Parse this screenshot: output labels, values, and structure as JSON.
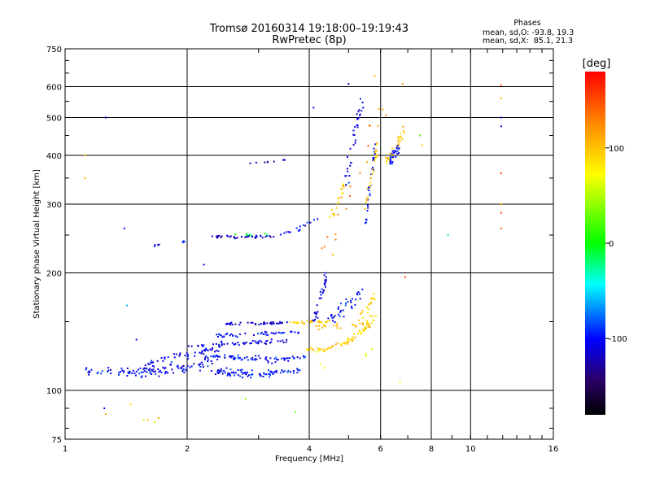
{
  "chart_data": {
    "type": "scatter",
    "title": "Tromsø 20160314 19:18:00–19:19:43",
    "subtitle": "RwPretec (8p)",
    "xlabel": "Frequency [MHz]",
    "ylabel": "Stationary phase Virtual Height [km]",
    "xscale": "log",
    "yscale": "log",
    "xlim": [
      1,
      16
    ],
    "ylim": [
      75,
      750
    ],
    "xticks": [
      1,
      2,
      4,
      6,
      8,
      10,
      16
    ],
    "xtick_labels": [
      "1",
      "2",
      "4",
      "6",
      "8",
      "10",
      "16"
    ],
    "xgrid": [
      2,
      4,
      6,
      8,
      10
    ],
    "yticks": [
      75,
      100,
      200,
      300,
      400,
      500,
      600,
      750
    ],
    "ytick_labels": [
      "75",
      "100",
      "200",
      "300",
      "400",
      "500",
      "600",
      "750"
    ],
    "ygrid": [
      100,
      200,
      300,
      400,
      500,
      600
    ],
    "info": {
      "heading": "Phases",
      "line1": "mean, sd,O: -93.8, 19.3",
      "line2": "mean, sd,X:  85.1, 21.3"
    },
    "colorbar": {
      "label": "[deg]",
      "range": [
        -180,
        180
      ],
      "ticks": [
        100,
        0,
        -100
      ],
      "tick_labels": [
        "100",
        "0",
        "-100"
      ]
    },
    "traces": [
      {
        "f": [
          1.13,
          1.55
        ],
        "h": [
          112,
          111
        ],
        "phase": -100,
        "n": 40,
        "jf": 0.03,
        "jh": 0.04
      },
      {
        "f": [
          1.55,
          2.3
        ],
        "h": [
          111,
          116
        ],
        "phase": -105,
        "n": 70,
        "jf": 0.04,
        "jh": 0.05
      },
      {
        "f": [
          2.3,
          3.0
        ],
        "h": [
          112,
          110
        ],
        "phase": -100,
        "n": 50,
        "jf": 0.03,
        "jh": 0.04
      },
      {
        "f": [
          3.0,
          3.8
        ],
        "h": [
          110,
          112
        ],
        "phase": -95,
        "n": 35,
        "jf": 0.02,
        "jh": 0.03
      },
      {
        "f": [
          1.6,
          2.4
        ],
        "h": [
          118,
          128
        ],
        "phase": -110,
        "n": 45,
        "jf": 0.03,
        "jh": 0.03
      },
      {
        "f": [
          2.2,
          3.3
        ],
        "h": [
          122,
          120
        ],
        "phase": -100,
        "n": 55,
        "jf": 0.03,
        "jh": 0.03
      },
      {
        "f": [
          3.3,
          3.9
        ],
        "h": [
          120,
          122
        ],
        "phase": -95,
        "n": 20,
        "jf": 0.02,
        "jh": 0.02
      },
      {
        "f": [
          2.0,
          3.6
        ],
        "h": [
          130,
          134
        ],
        "phase": -110,
        "n": 50,
        "jf": 0.02,
        "jh": 0.02
      },
      {
        "f": [
          2.3,
          3.8
        ],
        "h": [
          138,
          141
        ],
        "phase": -100,
        "n": 45,
        "jf": 0.02,
        "jh": 0.02
      },
      {
        "f": [
          2.5,
          3.6
        ],
        "h": [
          148,
          149
        ],
        "phase": -115,
        "n": 40,
        "jf": 0.015,
        "jh": 0.012
      },
      {
        "f": [
          3.6,
          4.5
        ],
        "h": [
          149,
          150
        ],
        "phase": 95,
        "n": 25,
        "jf": 0.02,
        "jh": 0.015
      },
      {
        "f": [
          3.9,
          4.3
        ],
        "h": [
          128,
          126
        ],
        "phase": 90,
        "n": 15,
        "jf": 0.02,
        "jh": 0.02
      },
      {
        "f": [
          4.3,
          5.2
        ],
        "h": [
          126,
          136
        ],
        "phase": 95,
        "n": 30,
        "jf": 0.02,
        "jh": 0.03
      },
      {
        "f": [
          5.2,
          5.8
        ],
        "h": [
          136,
          155
        ],
        "phase": 90,
        "n": 25,
        "jf": 0.02,
        "jh": 0.03
      },
      {
        "f": [
          5.3,
          5.8
        ],
        "h": [
          150,
          175
        ],
        "phase": 95,
        "n": 20,
        "jf": 0.01,
        "jh": 0.04
      },
      {
        "f": [
          4.0,
          5.6
        ],
        "h": [
          145,
          148
        ],
        "phase": 110,
        "n": 25,
        "jf": 0.03,
        "jh": 0.03
      },
      {
        "f": [
          4.1,
          4.4
        ],
        "h": [
          150,
          195
        ],
        "phase": -110,
        "n": 30,
        "jf": 0.015,
        "jh": 0.06
      },
      {
        "f": [
          4.5,
          5.4
        ],
        "h": [
          150,
          180
        ],
        "phase": -100,
        "n": 35,
        "jf": 0.03,
        "jh": 0.05
      },
      {
        "f": [
          1.65,
          1.8
        ],
        "h": [
          235,
          238
        ],
        "phase": -110,
        "n": 4,
        "jf": 0.01,
        "jh": 0.01
      },
      {
        "f": [
          1.95,
          2.02
        ],
        "h": [
          240,
          245
        ],
        "phase": -105,
        "n": 4,
        "jf": 0.01,
        "jh": 0.01
      },
      {
        "f": [
          2.3,
          3.3
        ],
        "h": [
          247,
          248
        ],
        "phase": -115,
        "n": 40,
        "jf": 0.015,
        "jh": 0.012
      },
      {
        "f": [
          2.6,
          3.2
        ],
        "h": [
          250,
          252
        ],
        "phase": -10,
        "n": 8,
        "jf": 0.02,
        "jh": 0.01
      },
      {
        "f": [
          3.4,
          3.8
        ],
        "h": [
          252,
          258
        ],
        "phase": -100,
        "n": 8,
        "jf": 0.01,
        "jh": 0.01
      },
      {
        "f": [
          3.7,
          4.2
        ],
        "h": [
          260,
          275
        ],
        "phase": -100,
        "n": 8,
        "jf": 0.01,
        "jh": 0.01
      },
      {
        "f": [
          2.8,
          3.6
        ],
        "h": [
          380,
          390
        ],
        "phase": -120,
        "n": 8,
        "jf": 0.01,
        "jh": 0.01
      },
      {
        "f": [
          4.5,
          4.9
        ],
        "h": [
          270,
          340
        ],
        "phase": 95,
        "n": 18,
        "jf": 0.02,
        "jh": 0.05
      },
      {
        "f": [
          4.9,
          5.4
        ],
        "h": [
          330,
          560
        ],
        "phase": -110,
        "n": 35,
        "jf": 0.02,
        "jh": 0.08
      },
      {
        "f": [
          5.5,
          5.8
        ],
        "h": [
          260,
          420
        ],
        "phase": -100,
        "n": 30,
        "jf": 0.01,
        "jh": 0.08
      },
      {
        "f": [
          5.5,
          5.9
        ],
        "h": [
          300,
          420
        ],
        "phase": 95,
        "n": 25,
        "jf": 0.01,
        "jh": 0.06
      },
      {
        "f": [
          6.2,
          6.9
        ],
        "h": [
          380,
          470
        ],
        "phase": 95,
        "n": 35,
        "jf": 0.02,
        "jh": 0.05
      },
      {
        "f": [
          6.2,
          6.7
        ],
        "h": [
          370,
          430
        ],
        "phase": -100,
        "n": 25,
        "jf": 0.02,
        "jh": 0.05
      },
      {
        "f": [
          4.2,
          6.3
        ],
        "h": [
          200,
          580
        ],
        "phase": 130,
        "n": 20,
        "jf": 0.05,
        "jh": 0.12
      },
      {
        "f": [
          1.3,
          6.0
        ],
        "h": [
          80,
          130
        ],
        "phase": 60,
        "n": 8,
        "jf": 0.08,
        "jh": 0.08
      }
    ],
    "isolated_points": [
      {
        "f": 1.12,
        "h": 350,
        "phase": 110
      },
      {
        "f": 1.12,
        "h": 400,
        "phase": 100
      },
      {
        "f": 1.26,
        "h": 500,
        "phase": -120
      },
      {
        "f": 1.4,
        "h": 260,
        "phase": -100
      },
      {
        "f": 1.42,
        "h": 165,
        "phase": -60
      },
      {
        "f": 1.5,
        "h": 135,
        "phase": -110
      },
      {
        "f": 1.25,
        "h": 90,
        "phase": -100
      },
      {
        "f": 1.26,
        "h": 87,
        "phase": 110
      },
      {
        "f": 1.45,
        "h": 92,
        "phase": 90
      },
      {
        "f": 1.6,
        "h": 84,
        "phase": 100
      },
      {
        "f": 1.7,
        "h": 85,
        "phase": 110
      },
      {
        "f": 2.2,
        "h": 210,
        "phase": -110
      },
      {
        "f": 3.7,
        "h": 88,
        "phase": 30
      },
      {
        "f": 4.1,
        "h": 530,
        "phase": -110
      },
      {
        "f": 5.0,
        "h": 610,
        "phase": -120
      },
      {
        "f": 5.8,
        "h": 640,
        "phase": 110
      },
      {
        "f": 6.8,
        "h": 610,
        "phase": 120
      },
      {
        "f": 6.7,
        "h": 105,
        "phase": 70
      },
      {
        "f": 6.9,
        "h": 195,
        "phase": 150
      },
      {
        "f": 7.5,
        "h": 450,
        "phase": 20
      },
      {
        "f": 7.6,
        "h": 425,
        "phase": 90
      },
      {
        "f": 8.8,
        "h": 250,
        "phase": -20
      },
      {
        "f": 11.9,
        "h": 605,
        "phase": 150
      },
      {
        "f": 11.9,
        "h": 560,
        "phase": 110
      },
      {
        "f": 11.9,
        "h": 500,
        "phase": -110
      },
      {
        "f": 11.9,
        "h": 475,
        "phase": -120
      },
      {
        "f": 11.9,
        "h": 360,
        "phase": 150
      },
      {
        "f": 11.9,
        "h": 300,
        "phase": 110
      },
      {
        "f": 11.9,
        "h": 285,
        "phase": 150
      },
      {
        "f": 11.9,
        "h": 260,
        "phase": 140
      }
    ]
  }
}
